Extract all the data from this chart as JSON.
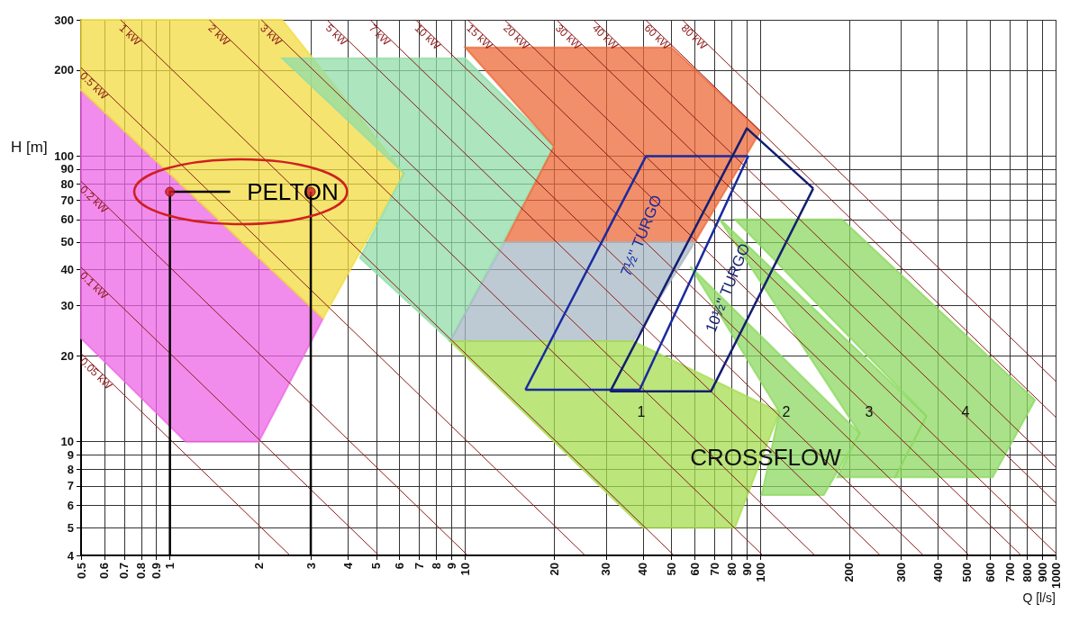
{
  "chart_data": {
    "type": "line",
    "xlabel": "Q [l/s]",
    "ylabel": "H [m]",
    "log": "xy",
    "grid": true,
    "legend": false,
    "xlim": [
      0.5,
      1000
    ],
    "ylim": [
      4,
      300
    ],
    "xticks": [
      0.5,
      0.6,
      0.7,
      0.8,
      0.9,
      1,
      2,
      3,
      4,
      5,
      6,
      7,
      8,
      9,
      10,
      20,
      30,
      40,
      50,
      60,
      70,
      80,
      90,
      100,
      200,
      300,
      400,
      500,
      600,
      700,
      800,
      900,
      1000
    ],
    "yticks": [
      4,
      5,
      6,
      7,
      8,
      9,
      10,
      20,
      30,
      40,
      50,
      60,
      70,
      80,
      90,
      100,
      200,
      300
    ],
    "series": [
      {
        "type": "area",
        "color": "#ee66e6",
        "x": [
          0.5,
          3.3,
          2,
          1.13,
          0.5
        ],
        "values": [
          170,
          27,
          10,
          10,
          23
        ]
      },
      {
        "type": "area",
        "color": "#f2dc40",
        "x": [
          0.5,
          2.4,
          6.2,
          3.3,
          0.5
        ],
        "values": [
          300,
          300,
          87,
          27,
          170
        ]
      },
      {
        "type": "area",
        "color": "#90dca8",
        "x": [
          2.4,
          10,
          20,
          8.9,
          4.4,
          6.2
        ],
        "values": [
          220,
          220,
          108,
          22.5,
          44,
          87
        ]
      },
      {
        "type": "area",
        "color": "#ec6a38",
        "x": [
          10,
          50,
          100,
          60,
          13.6,
          20
        ],
        "values": [
          240,
          240,
          122,
          50,
          50,
          108
        ]
      },
      {
        "type": "area",
        "color": "#a8b8c4",
        "x": [
          13.6,
          60,
          37,
          8.9
        ],
        "values": [
          50,
          50,
          22.5,
          22.5
        ]
      },
      {
        "type": "area",
        "color": "#a6dc50",
        "x": [
          8.9,
          37,
          116,
          82,
          40
        ],
        "values": [
          22.5,
          22.5,
          12.7,
          5,
          5
        ]
      },
      {
        "type": "area",
        "color": "#8cd860",
        "x": [
          58,
          217,
          164,
          101,
          116
        ],
        "values": [
          41,
          10.7,
          6.5,
          6.5,
          12.7
        ]
      },
      {
        "type": "area",
        "color": "#8cd860",
        "x": [
          72,
          365,
          286,
          182,
          217
        ],
        "values": [
          61,
          12.3,
          7.5,
          7.5,
          10.7
        ]
      },
      {
        "type": "area",
        "color": "#8cd860",
        "x": [
          82,
          189,
          852,
          612,
          286,
          365
        ],
        "values": [
          60,
          60,
          14,
          7.5,
          7.5,
          12.3
        ]
      },
      {
        "name": "0.05 kW",
        "color": "#8b1a1a",
        "x": [
          0.5,
          2.55
        ],
        "values": [
          20.4,
          4
        ]
      },
      {
        "name": "0.1 kW",
        "color": "#8b1a1a",
        "x": [
          0.5,
          5.1
        ],
        "values": [
          40.8,
          4
        ]
      },
      {
        "name": "0.2 kW",
        "color": "#8b1a1a",
        "x": [
          0.5,
          10.2
        ],
        "values": [
          81.6,
          4
        ]
      },
      {
        "name": "0.5 kW",
        "color": "#8b1a1a",
        "x": [
          0.5,
          25.5
        ],
        "values": [
          204,
          4
        ]
      },
      {
        "name": "1 kW",
        "color": "#8b1a1a",
        "x": [
          0.68,
          51
        ],
        "values": [
          300,
          4
        ]
      },
      {
        "name": "2 kW",
        "color": "#8b1a1a",
        "x": [
          1.36,
          102
        ],
        "values": [
          300,
          4
        ]
      },
      {
        "name": "3 kW",
        "color": "#8b1a1a",
        "x": [
          2.04,
          153
        ],
        "values": [
          300,
          4
        ]
      },
      {
        "name": "5 kW",
        "color": "#8b1a1a",
        "x": [
          3.4,
          255
        ],
        "values": [
          300,
          4
        ]
      },
      {
        "name": "7 kW",
        "color": "#8b1a1a",
        "x": [
          4.76,
          357
        ],
        "values": [
          300,
          4
        ]
      },
      {
        "name": "10 kW",
        "color": "#8b1a1a",
        "x": [
          6.8,
          510
        ],
        "values": [
          300,
          4
        ]
      },
      {
        "name": "15 kW",
        "color": "#8b1a1a",
        "x": [
          10.2,
          765
        ],
        "values": [
          300,
          4
        ]
      },
      {
        "name": "20 kW",
        "color": "#8b1a1a",
        "x": [
          13.6,
          1000
        ],
        "values": [
          300,
          4.08
        ]
      },
      {
        "name": "30 kW",
        "color": "#8b1a1a",
        "x": [
          20.4,
          1000
        ],
        "values": [
          300,
          6.12
        ]
      },
      {
        "name": "40 kW",
        "color": "#8b1a1a",
        "x": [
          27.2,
          1000
        ],
        "values": [
          300,
          8.16
        ]
      },
      {
        "name": "60 kW",
        "color": "#8b1a1a",
        "x": [
          40.8,
          1000
        ],
        "values": [
          300,
          12.2
        ]
      },
      {
        "name": "80 kW",
        "color": "#8b1a1a",
        "x": [
          54.4,
          1000
        ],
        "values": [
          300,
          16.3
        ]
      },
      {
        "color": "#1a2aa0",
        "x": [
          16,
          41,
          91
        ],
        "values": [
          15.2,
          100,
          100
        ]
      },
      {
        "color": "#1a2aa0",
        "x": [
          16,
          39,
          91
        ],
        "values": [
          15.2,
          15.2,
          100
        ]
      },
      {
        "color": "#141e70",
        "x": [
          31,
          90,
          151
        ],
        "values": [
          15,
          125,
          77
        ]
      },
      {
        "color": "#141e70",
        "x": [
          31,
          68,
          151
        ],
        "values": [
          15,
          15,
          77
        ]
      },
      {
        "color": "#000000",
        "x": [
          1,
          1,
          1.6
        ],
        "values": [
          4,
          75,
          75
        ]
      },
      {
        "color": "#000000",
        "x": [
          3,
          3
        ],
        "values": [
          4,
          75
        ]
      },
      {
        "type": "scatter",
        "marker": "circle",
        "color": "#d02020",
        "x": [
          1,
          3
        ],
        "values": [
          75,
          75
        ]
      }
    ],
    "annotations": [
      "PELTON",
      "CROSSFLOW",
      "7½\" TURGO",
      "10½\" TURGO",
      "1",
      "2",
      "3",
      "4"
    ]
  }
}
